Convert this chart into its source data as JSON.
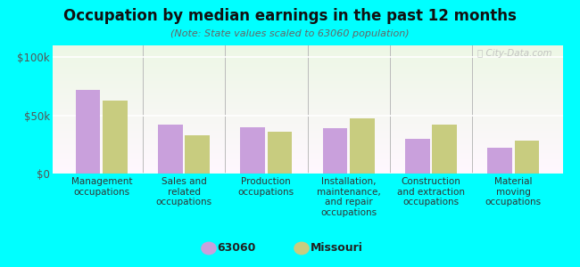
{
  "title": "Occupation by median earnings in the past 12 months",
  "subtitle": "(Note: State values scaled to 63060 population)",
  "categories": [
    "Management\noccupations",
    "Sales and\nrelated\noccupations",
    "Production\noccupations",
    "Installation,\nmaintenance,\nand repair\noccupations",
    "Construction\nand extraction\noccupations",
    "Material\nmoving\noccupations"
  ],
  "values_63060": [
    72000,
    42000,
    40000,
    39000,
    30000,
    22000
  ],
  "values_missouri": [
    63000,
    33000,
    36000,
    47000,
    42000,
    28000
  ],
  "color_63060": "#c9a0dc",
  "color_missouri": "#c8cc7f",
  "ylim": [
    0,
    110000
  ],
  "yticks": [
    0,
    50000,
    100000
  ],
  "ytick_labels": [
    "$0",
    "$50k",
    "$100k"
  ],
  "background_color": "#00ffff",
  "legend_label_63060": "63060",
  "legend_label_missouri": "Missouri",
  "watermark": "ⓘ City-Data.com"
}
